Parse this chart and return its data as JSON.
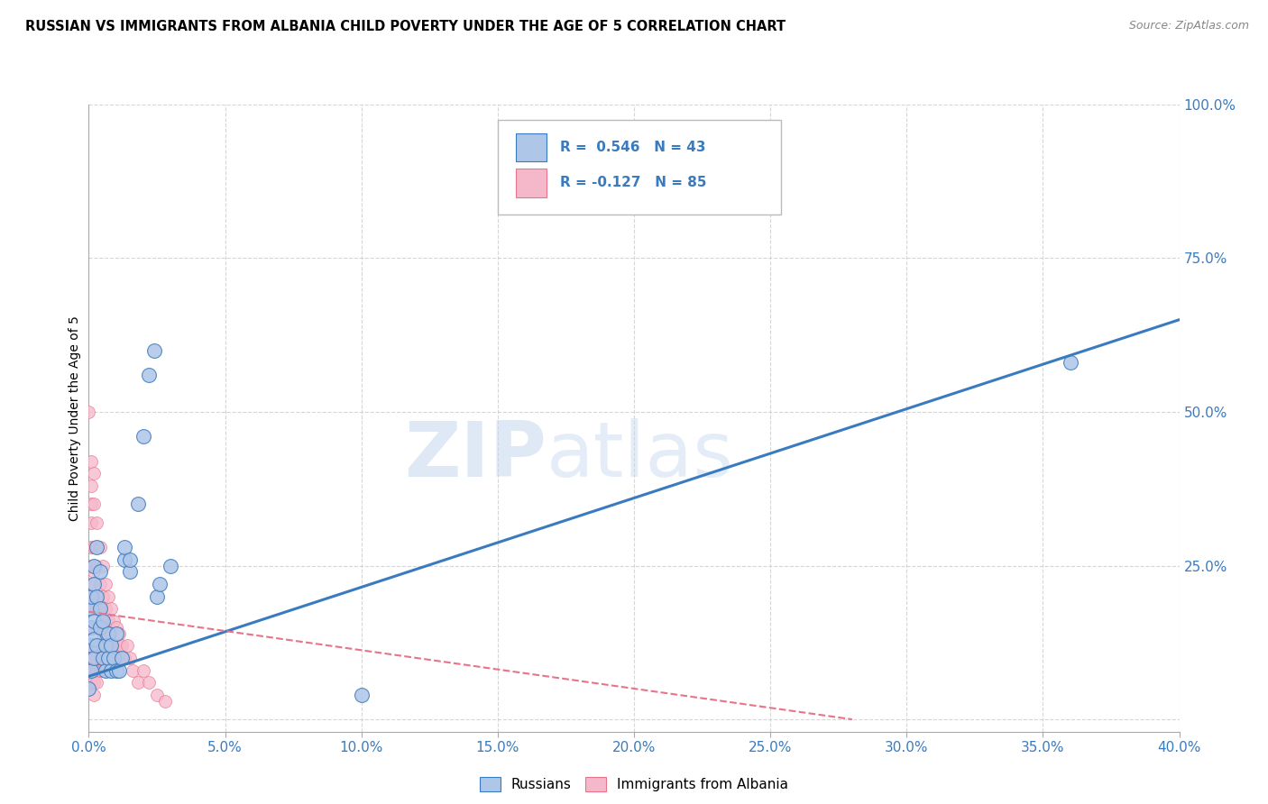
{
  "title": "RUSSIAN VS IMMIGRANTS FROM ALBANIA CHILD POVERTY UNDER THE AGE OF 5 CORRELATION CHART",
  "source": "Source: ZipAtlas.com",
  "ylabel": "Child Poverty Under the Age of 5",
  "russian_color": "#aec6e8",
  "albania_color": "#f5b8cb",
  "trendline_russian_color": "#3a7bbf",
  "trendline_albania_color": "#e8738a",
  "watermark_zip": "ZIP",
  "watermark_atlas": "atlas",
  "xmin": 0.0,
  "xmax": 0.4,
  "ymin": -0.02,
  "ymax": 1.0,
  "russian_points": [
    [
      0.0,
      0.05
    ],
    [
      0.001,
      0.08
    ],
    [
      0.001,
      0.12
    ],
    [
      0.001,
      0.15
    ],
    [
      0.001,
      0.18
    ],
    [
      0.001,
      0.2
    ],
    [
      0.002,
      0.1
    ],
    [
      0.002,
      0.13
    ],
    [
      0.002,
      0.16
    ],
    [
      0.002,
      0.22
    ],
    [
      0.002,
      0.25
    ],
    [
      0.003,
      0.12
    ],
    [
      0.003,
      0.2
    ],
    [
      0.003,
      0.28
    ],
    [
      0.004,
      0.15
    ],
    [
      0.004,
      0.18
    ],
    [
      0.004,
      0.24
    ],
    [
      0.005,
      0.1
    ],
    [
      0.005,
      0.16
    ],
    [
      0.006,
      0.08
    ],
    [
      0.006,
      0.12
    ],
    [
      0.007,
      0.1
    ],
    [
      0.007,
      0.14
    ],
    [
      0.008,
      0.08
    ],
    [
      0.008,
      0.12
    ],
    [
      0.009,
      0.1
    ],
    [
      0.01,
      0.08
    ],
    [
      0.01,
      0.14
    ],
    [
      0.011,
      0.08
    ],
    [
      0.012,
      0.1
    ],
    [
      0.013,
      0.26
    ],
    [
      0.013,
      0.28
    ],
    [
      0.015,
      0.24
    ],
    [
      0.015,
      0.26
    ],
    [
      0.018,
      0.35
    ],
    [
      0.02,
      0.46
    ],
    [
      0.022,
      0.56
    ],
    [
      0.024,
      0.6
    ],
    [
      0.025,
      0.2
    ],
    [
      0.026,
      0.22
    ],
    [
      0.03,
      0.25
    ],
    [
      0.36,
      0.58
    ],
    [
      0.1,
      0.04
    ]
  ],
  "albania_points": [
    [
      0.0,
      0.5
    ],
    [
      0.001,
      0.42
    ],
    [
      0.001,
      0.38
    ],
    [
      0.001,
      0.35
    ],
    [
      0.001,
      0.32
    ],
    [
      0.001,
      0.28
    ],
    [
      0.001,
      0.25
    ],
    [
      0.001,
      0.22
    ],
    [
      0.001,
      0.18
    ],
    [
      0.001,
      0.15
    ],
    [
      0.001,
      0.12
    ],
    [
      0.001,
      0.1
    ],
    [
      0.001,
      0.08
    ],
    [
      0.001,
      0.06
    ],
    [
      0.002,
      0.4
    ],
    [
      0.002,
      0.35
    ],
    [
      0.002,
      0.28
    ],
    [
      0.002,
      0.24
    ],
    [
      0.002,
      0.2
    ],
    [
      0.002,
      0.18
    ],
    [
      0.002,
      0.15
    ],
    [
      0.002,
      0.12
    ],
    [
      0.002,
      0.1
    ],
    [
      0.002,
      0.08
    ],
    [
      0.002,
      0.06
    ],
    [
      0.002,
      0.04
    ],
    [
      0.003,
      0.32
    ],
    [
      0.003,
      0.25
    ],
    [
      0.003,
      0.2
    ],
    [
      0.003,
      0.18
    ],
    [
      0.003,
      0.15
    ],
    [
      0.003,
      0.12
    ],
    [
      0.003,
      0.1
    ],
    [
      0.003,
      0.08
    ],
    [
      0.003,
      0.06
    ],
    [
      0.004,
      0.28
    ],
    [
      0.004,
      0.22
    ],
    [
      0.004,
      0.18
    ],
    [
      0.004,
      0.15
    ],
    [
      0.004,
      0.12
    ],
    [
      0.004,
      0.1
    ],
    [
      0.004,
      0.08
    ],
    [
      0.005,
      0.25
    ],
    [
      0.005,
      0.2
    ],
    [
      0.005,
      0.16
    ],
    [
      0.005,
      0.14
    ],
    [
      0.005,
      0.12
    ],
    [
      0.005,
      0.1
    ],
    [
      0.005,
      0.08
    ],
    [
      0.006,
      0.22
    ],
    [
      0.006,
      0.18
    ],
    [
      0.006,
      0.14
    ],
    [
      0.006,
      0.12
    ],
    [
      0.006,
      0.1
    ],
    [
      0.006,
      0.08
    ],
    [
      0.007,
      0.2
    ],
    [
      0.007,
      0.16
    ],
    [
      0.007,
      0.12
    ],
    [
      0.007,
      0.1
    ],
    [
      0.007,
      0.08
    ],
    [
      0.008,
      0.18
    ],
    [
      0.008,
      0.14
    ],
    [
      0.008,
      0.12
    ],
    [
      0.008,
      0.1
    ],
    [
      0.009,
      0.16
    ],
    [
      0.009,
      0.12
    ],
    [
      0.009,
      0.1
    ],
    [
      0.01,
      0.15
    ],
    [
      0.01,
      0.12
    ],
    [
      0.01,
      0.1
    ],
    [
      0.011,
      0.14
    ],
    [
      0.011,
      0.12
    ],
    [
      0.012,
      0.12
    ],
    [
      0.012,
      0.1
    ],
    [
      0.013,
      0.1
    ],
    [
      0.014,
      0.12
    ],
    [
      0.015,
      0.1
    ],
    [
      0.016,
      0.08
    ],
    [
      0.018,
      0.06
    ],
    [
      0.02,
      0.08
    ],
    [
      0.022,
      0.06
    ],
    [
      0.025,
      0.04
    ],
    [
      0.028,
      0.03
    ]
  ],
  "trend_russian_x0": 0.0,
  "trend_russian_y0": 0.07,
  "trend_russian_x1": 0.4,
  "trend_russian_y1": 0.65,
  "trend_albania_x0": 0.0,
  "trend_albania_y0": 0.175,
  "trend_albania_x1": 0.28,
  "trend_albania_y1": 0.0
}
